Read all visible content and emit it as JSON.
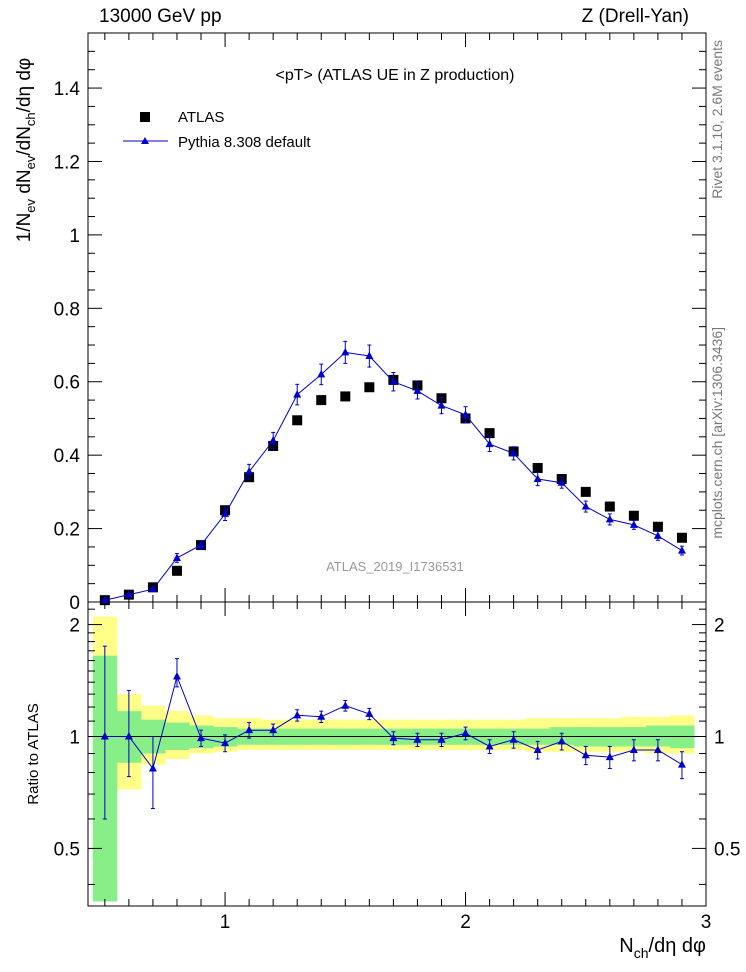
{
  "header": {
    "left": "13000 GeV pp",
    "right": "Z (Drell-Yan)"
  },
  "side_labels": {
    "rivet": "Rivet 3.1.10,  2.6M events",
    "mcplots": "mcplots.cern.ch [arXiv:1306.3436]"
  },
  "chart_data": [
    {
      "type": "scatter",
      "title": "<pT> (ATLAS UE in Z production)",
      "watermark": "ATLAS_2019_I1736531",
      "ylabel": "1/N_ev dN_ev/dN_ch/dη dφ",
      "xlim": [
        0.43,
        3.0
      ],
      "ylim": [
        0,
        1.55
      ],
      "yticks": [
        "0",
        "0.2",
        "0.4",
        "0.6",
        "0.8",
        "1",
        "1.2",
        "1.4"
      ],
      "legend_position": "top-left",
      "x": [
        0.5,
        0.6,
        0.7,
        0.8,
        0.9,
        1.0,
        1.1,
        1.2,
        1.3,
        1.4,
        1.5,
        1.6,
        1.7,
        1.8,
        1.9,
        2.0,
        2.1,
        2.2,
        2.3,
        2.4,
        2.5,
        2.6,
        2.7,
        2.8,
        2.9
      ],
      "series": [
        {
          "name": "ATLAS",
          "color": "#000000",
          "marker": "square",
          "values": [
            0.005,
            0.02,
            0.04,
            0.085,
            0.155,
            0.25,
            0.34,
            0.425,
            0.495,
            0.55,
            0.56,
            0.585,
            0.605,
            0.59,
            0.555,
            0.5,
            0.46,
            0.41,
            0.365,
            0.335,
            0.3,
            0.26,
            0.235,
            0.205,
            0.175
          ]
        },
        {
          "name": "Pythia 8.308 default",
          "color": "#0000cc",
          "marker": "triangle",
          "values": [
            0.005,
            0.02,
            0.035,
            0.12,
            0.155,
            0.24,
            0.355,
            0.44,
            0.565,
            0.62,
            0.68,
            0.67,
            0.6,
            0.575,
            0.535,
            0.51,
            0.43,
            0.405,
            0.335,
            0.325,
            0.26,
            0.225,
            0.21,
            0.18,
            0.14
          ],
          "errors": [
            0.003,
            0.004,
            0.005,
            0.012,
            0.012,
            0.018,
            0.02,
            0.022,
            0.028,
            0.028,
            0.03,
            0.03,
            0.025,
            0.022,
            0.022,
            0.022,
            0.02,
            0.018,
            0.018,
            0.015,
            0.015,
            0.015,
            0.012,
            0.012,
            0.012
          ]
        }
      ]
    },
    {
      "type": "scatter",
      "ylabel": "Ratio to ATLAS",
      "xlabel": "N_ch/dη dφ",
      "xlim": [
        0.43,
        3.0
      ],
      "ylim": [
        0.35,
        2.3
      ],
      "log_y": true,
      "xticks": [
        "1",
        "2",
        "3"
      ],
      "yticks": [
        "0.5",
        "1",
        "2"
      ],
      "x": [
        0.5,
        0.6,
        0.7,
        0.8,
        0.9,
        1.0,
        1.1,
        1.2,
        1.3,
        1.4,
        1.5,
        1.6,
        1.7,
        1.8,
        1.9,
        2.0,
        2.1,
        2.2,
        2.3,
        2.4,
        2.5,
        2.6,
        2.7,
        2.8,
        2.9
      ],
      "reference_band": {
        "yellow": [
          [
            0.4,
            2.1
          ],
          [
            0.72,
            1.3
          ],
          [
            0.84,
            1.21
          ],
          [
            0.87,
            1.17
          ],
          [
            0.9,
            1.14
          ],
          [
            0.91,
            1.12
          ],
          [
            0.92,
            1.12
          ],
          [
            0.92,
            1.11
          ],
          [
            0.92,
            1.11
          ],
          [
            0.92,
            1.11
          ],
          [
            0.92,
            1.11
          ],
          [
            0.92,
            1.11
          ],
          [
            0.92,
            1.11
          ],
          [
            0.92,
            1.11
          ],
          [
            0.92,
            1.11
          ],
          [
            0.92,
            1.11
          ],
          [
            0.92,
            1.11
          ],
          [
            0.92,
            1.11
          ],
          [
            0.91,
            1.12
          ],
          [
            0.91,
            1.12
          ],
          [
            0.91,
            1.12
          ],
          [
            0.91,
            1.12
          ],
          [
            0.91,
            1.13
          ],
          [
            0.9,
            1.13
          ],
          [
            0.9,
            1.14
          ]
        ],
        "green": [
          [
            0.36,
            1.65
          ],
          [
            0.85,
            1.17
          ],
          [
            0.9,
            1.11
          ],
          [
            0.92,
            1.09
          ],
          [
            0.93,
            1.07
          ],
          [
            0.94,
            1.06
          ],
          [
            0.95,
            1.05
          ],
          [
            0.95,
            1.05
          ],
          [
            0.95,
            1.05
          ],
          [
            0.95,
            1.05
          ],
          [
            0.95,
            1.05
          ],
          [
            0.95,
            1.05
          ],
          [
            0.95,
            1.05
          ],
          [
            0.95,
            1.05
          ],
          [
            0.95,
            1.05
          ],
          [
            0.95,
            1.05
          ],
          [
            0.95,
            1.05
          ],
          [
            0.95,
            1.05
          ],
          [
            0.95,
            1.05
          ],
          [
            0.95,
            1.06
          ],
          [
            0.94,
            1.06
          ],
          [
            0.94,
            1.06
          ],
          [
            0.94,
            1.06
          ],
          [
            0.94,
            1.07
          ],
          [
            0.93,
            1.07
          ]
        ]
      },
      "series": [
        {
          "name": "Pythia 8.308 default",
          "color": "#0000cc",
          "marker": "triangle",
          "values": [
            1.0,
            1.0,
            0.82,
            1.45,
            0.99,
            0.96,
            1.04,
            1.04,
            1.14,
            1.13,
            1.21,
            1.15,
            0.99,
            0.98,
            0.98,
            1.02,
            0.94,
            0.98,
            0.92,
            0.97,
            0.89,
            0.88,
            0.92,
            0.92,
            0.84
          ],
          "err_lo": [
            0.4,
            0.22,
            0.18,
            0.09,
            0.05,
            0.05,
            0.05,
            0.04,
            0.04,
            0.04,
            0.04,
            0.04,
            0.04,
            0.04,
            0.04,
            0.04,
            0.04,
            0.05,
            0.05,
            0.05,
            0.05,
            0.06,
            0.06,
            0.06,
            0.07
          ],
          "err_hi": [
            0.75,
            0.33,
            0.18,
            0.17,
            0.05,
            0.05,
            0.05,
            0.04,
            0.04,
            0.04,
            0.04,
            0.04,
            0.04,
            0.04,
            0.04,
            0.04,
            0.04,
            0.05,
            0.05,
            0.05,
            0.05,
            0.06,
            0.06,
            0.06,
            0.07
          ]
        }
      ]
    }
  ]
}
